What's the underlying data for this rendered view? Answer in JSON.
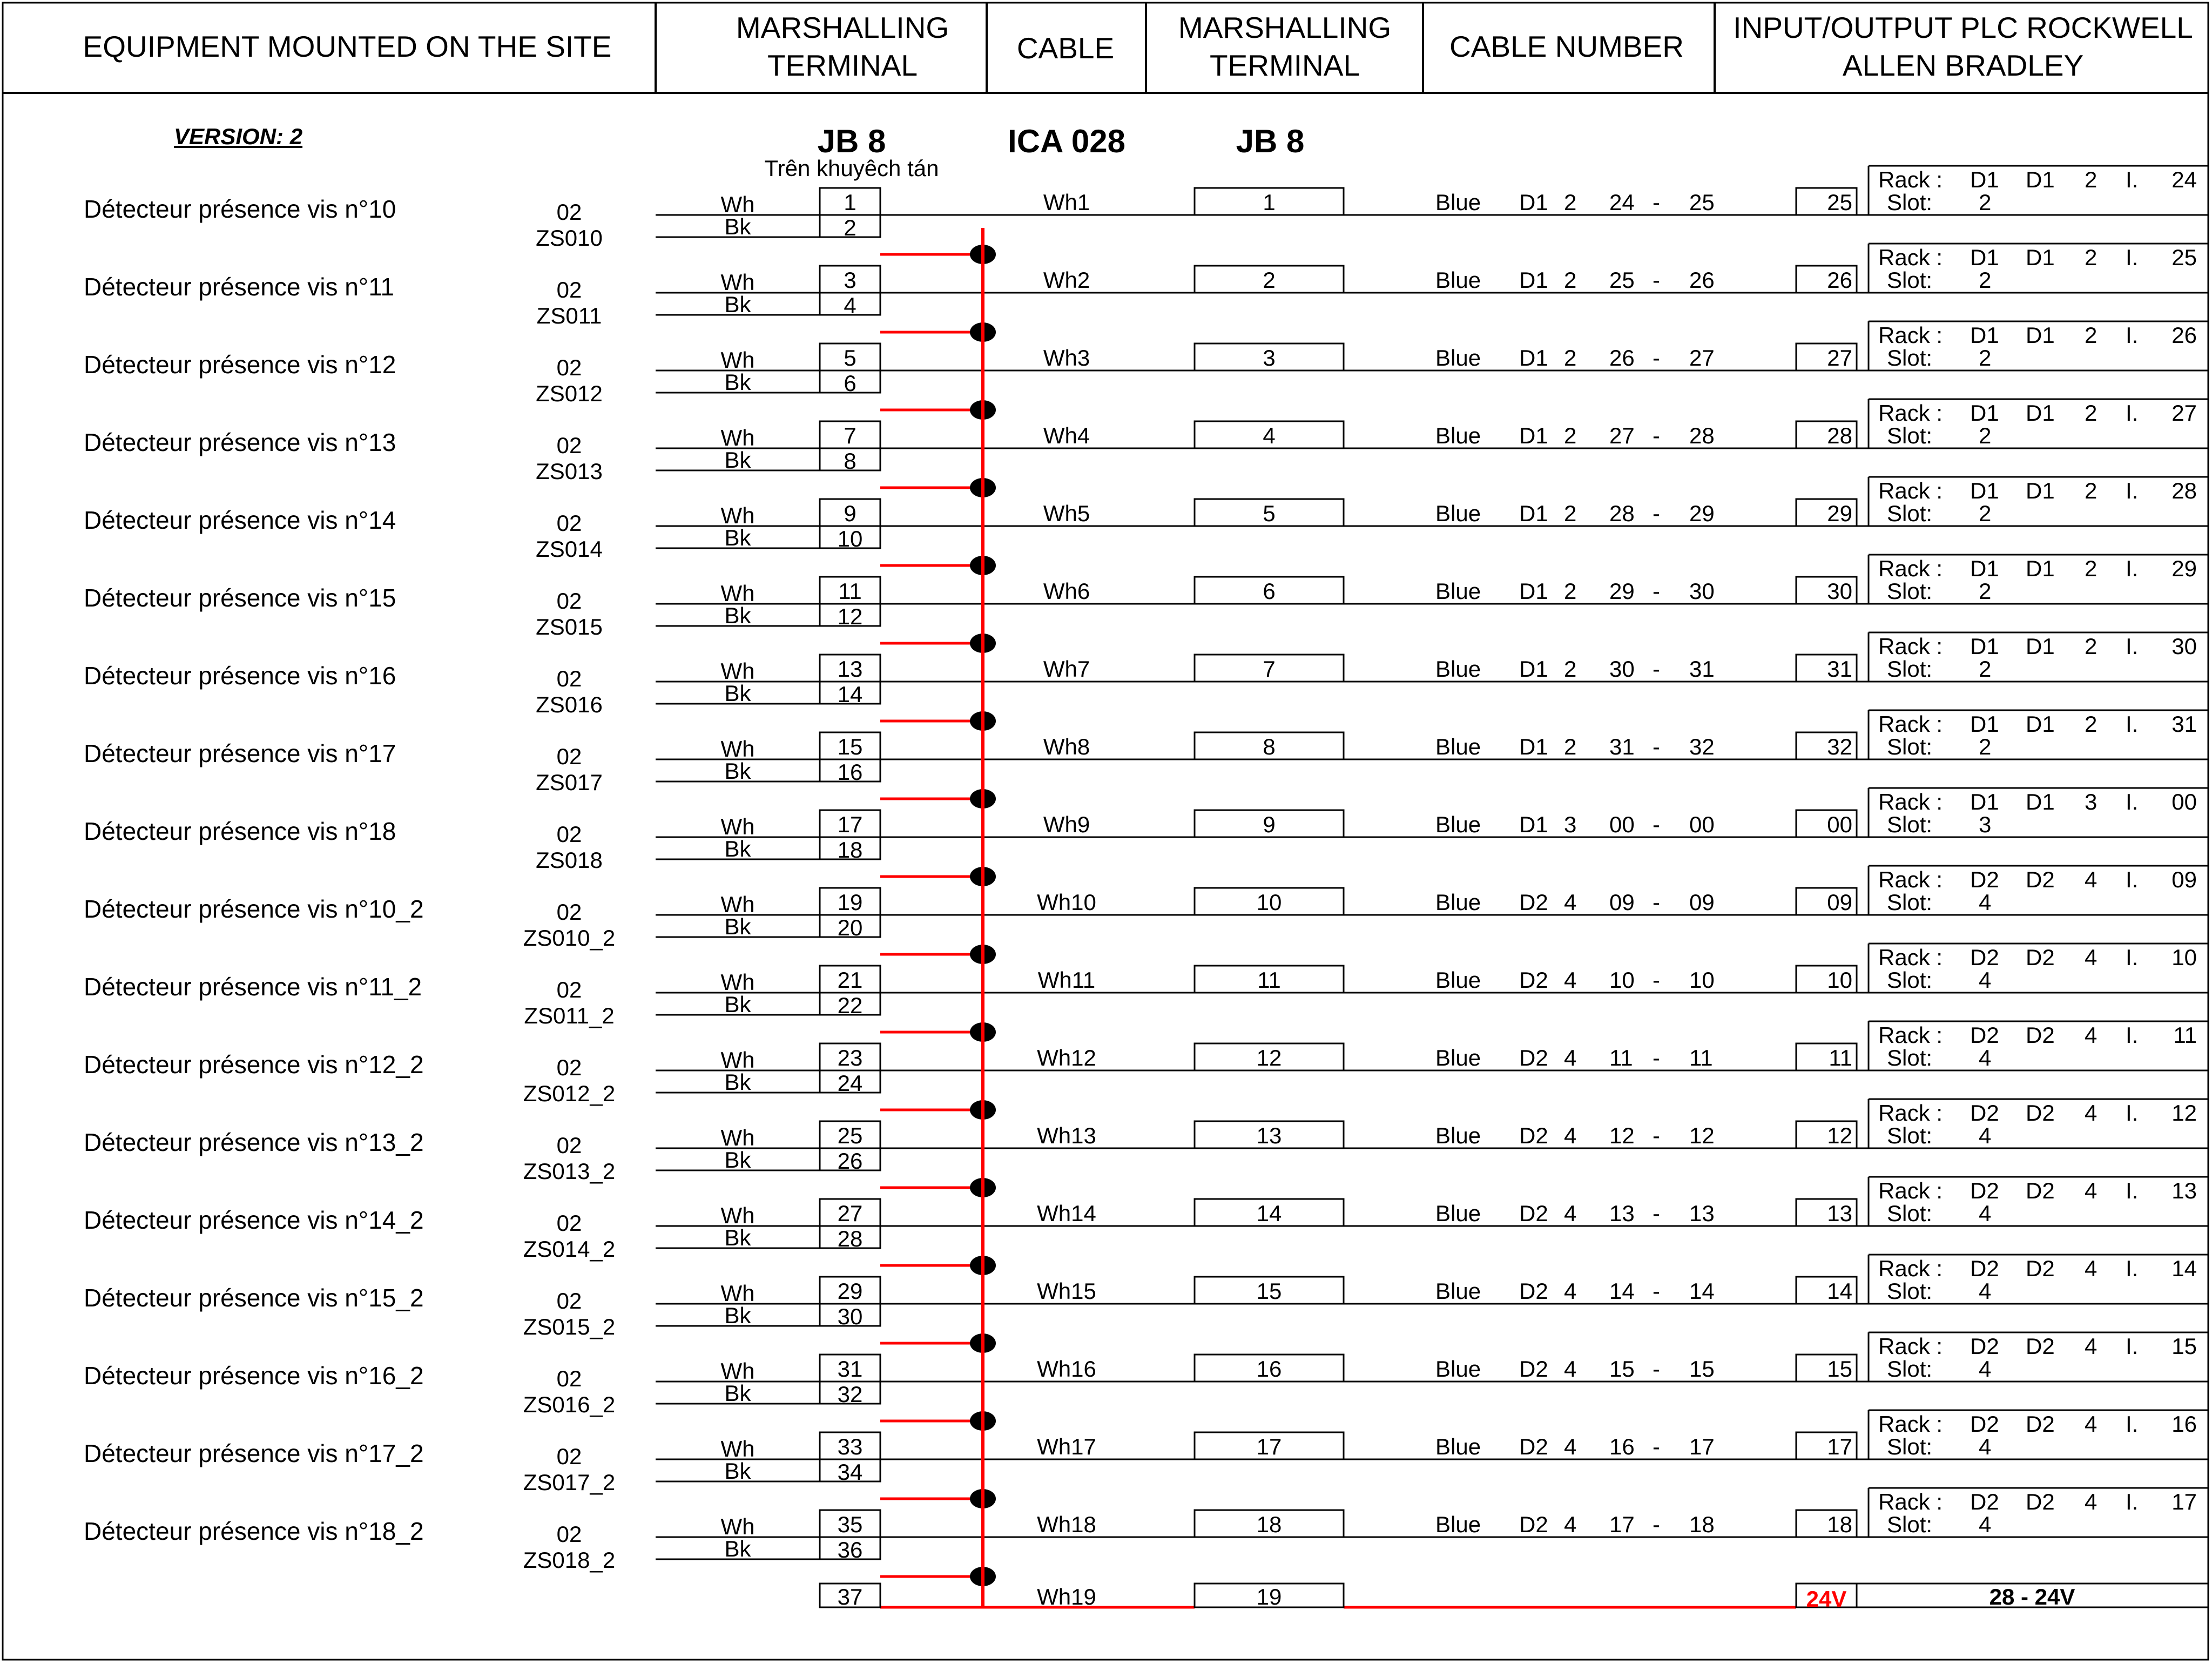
{
  "header": {
    "equipment": "EQUIPMENT MOUNTED ON THE SITE",
    "marshalling_1": [
      "MARSHALLING",
      "TERMINAL"
    ],
    "cable": "CABLE",
    "marshalling_2": [
      "MARSHALLING",
      "TERMINAL"
    ],
    "cable_number": "CABLE NUMBER",
    "plc": [
      "INPUT/OUTPUT PLC ROCKWELL",
      "ALLEN BRADLEY"
    ]
  },
  "version": "VERSION: 2",
  "junction_box_1": "JB 8",
  "junction_box_1_note": "Trên khuyêch tán",
  "cable_id": "ICA 028",
  "junction_box_2": "JB 8",
  "rows": [
    {
      "desc": "Détecteur présence vis n°10",
      "tag_top": "02",
      "tag": "ZS010",
      "term_a": "1",
      "term_b": "2",
      "wire": "Wh1",
      "jb_term": "1",
      "cable": [
        "Blue",
        "D1",
        "2",
        "24",
        "-",
        "25"
      ],
      "io": "25",
      "rack": [
        "Rack :",
        "D1",
        "D1",
        "2",
        "I.",
        "24"
      ],
      "slot": [
        "Slot:",
        "2"
      ]
    },
    {
      "desc": "Détecteur présence vis n°11",
      "tag_top": "02",
      "tag": "ZS011",
      "term_a": "3",
      "term_b": "4",
      "wire": "Wh2",
      "jb_term": "2",
      "cable": [
        "Blue",
        "D1",
        "2",
        "25",
        "-",
        "26"
      ],
      "io": "26",
      "rack": [
        "Rack :",
        "D1",
        "D1",
        "2",
        "I.",
        "25"
      ],
      "slot": [
        "Slot:",
        "2"
      ]
    },
    {
      "desc": "Détecteur présence vis n°12",
      "tag_top": "02",
      "tag": "ZS012",
      "term_a": "5",
      "term_b": "6",
      "wire": "Wh3",
      "jb_term": "3",
      "cable": [
        "Blue",
        "D1",
        "2",
        "26",
        "-",
        "27"
      ],
      "io": "27",
      "rack": [
        "Rack :",
        "D1",
        "D1",
        "2",
        "I.",
        "26"
      ],
      "slot": [
        "Slot:",
        "2"
      ]
    },
    {
      "desc": "Détecteur présence vis n°13",
      "tag_top": "02",
      "tag": "ZS013",
      "term_a": "7",
      "term_b": "8",
      "wire": "Wh4",
      "jb_term": "4",
      "cable": [
        "Blue",
        "D1",
        "2",
        "27",
        "-",
        "28"
      ],
      "io": "28",
      "rack": [
        "Rack :",
        "D1",
        "D1",
        "2",
        "I.",
        "27"
      ],
      "slot": [
        "Slot:",
        "2"
      ]
    },
    {
      "desc": "Détecteur présence vis n°14",
      "tag_top": "02",
      "tag": "ZS014",
      "term_a": "9",
      "term_b": "10",
      "wire": "Wh5",
      "jb_term": "5",
      "cable": [
        "Blue",
        "D1",
        "2",
        "28",
        "-",
        "29"
      ],
      "io": "29",
      "rack": [
        "Rack :",
        "D1",
        "D1",
        "2",
        "I.",
        "28"
      ],
      "slot": [
        "Slot:",
        "2"
      ]
    },
    {
      "desc": "Détecteur présence vis n°15",
      "tag_top": "02",
      "tag": "ZS015",
      "term_a": "11",
      "term_b": "12",
      "wire": "Wh6",
      "jb_term": "6",
      "cable": [
        "Blue",
        "D1",
        "2",
        "29",
        "-",
        "30"
      ],
      "io": "30",
      "rack": [
        "Rack :",
        "D1",
        "D1",
        "2",
        "I.",
        "29"
      ],
      "slot": [
        "Slot:",
        "2"
      ]
    },
    {
      "desc": "Détecteur présence vis n°16",
      "tag_top": "02",
      "tag": "ZS016",
      "term_a": "13",
      "term_b": "14",
      "wire": "Wh7",
      "jb_term": "7",
      "cable": [
        "Blue",
        "D1",
        "2",
        "30",
        "-",
        "31"
      ],
      "io": "31",
      "rack": [
        "Rack :",
        "D1",
        "D1",
        "2",
        "I.",
        "30"
      ],
      "slot": [
        "Slot:",
        "2"
      ]
    },
    {
      "desc": "Détecteur présence vis n°17",
      "tag_top": "02",
      "tag": "ZS017",
      "term_a": "15",
      "term_b": "16",
      "wire": "Wh8",
      "jb_term": "8",
      "cable": [
        "Blue",
        "D1",
        "2",
        "31",
        "-",
        "32"
      ],
      "io": "32",
      "rack": [
        "Rack :",
        "D1",
        "D1",
        "2",
        "I.",
        "31"
      ],
      "slot": [
        "Slot:",
        "2"
      ]
    },
    {
      "desc": "Détecteur présence vis n°18",
      "tag_top": "02",
      "tag": "ZS018",
      "term_a": "17",
      "term_b": "18",
      "wire": "Wh9",
      "jb_term": "9",
      "cable": [
        "Blue",
        "D1",
        "3",
        "00",
        "-",
        "00"
      ],
      "io": "00",
      "rack": [
        "Rack :",
        "D1",
        "D1",
        "3",
        "I.",
        "00"
      ],
      "slot": [
        "Slot:",
        "3"
      ]
    },
    {
      "desc": "Détecteur présence vis n°10_2",
      "tag_top": "02",
      "tag": "ZS010_2",
      "term_a": "19",
      "term_b": "20",
      "wire": "Wh10",
      "jb_term": "10",
      "cable": [
        "Blue",
        "D2",
        "4",
        "09",
        "-",
        "09"
      ],
      "io": "09",
      "rack": [
        "Rack :",
        "D2",
        "D2",
        "4",
        "I.",
        "09"
      ],
      "slot": [
        "Slot:",
        "4"
      ]
    },
    {
      "desc": "Détecteur présence vis n°11_2",
      "tag_top": "02",
      "tag": "ZS011_2",
      "term_a": "21",
      "term_b": "22",
      "wire": "Wh11",
      "jb_term": "11",
      "cable": [
        "Blue",
        "D2",
        "4",
        "10",
        "-",
        "10"
      ],
      "io": "10",
      "rack": [
        "Rack :",
        "D2",
        "D2",
        "4",
        "I.",
        "10"
      ],
      "slot": [
        "Slot:",
        "4"
      ]
    },
    {
      "desc": "Détecteur présence vis n°12_2",
      "tag_top": "02",
      "tag": "ZS012_2",
      "term_a": "23",
      "term_b": "24",
      "wire": "Wh12",
      "jb_term": "12",
      "cable": [
        "Blue",
        "D2",
        "4",
        "11",
        "-",
        "11"
      ],
      "io": "11",
      "rack": [
        "Rack :",
        "D2",
        "D2",
        "4",
        "I.",
        "11"
      ],
      "slot": [
        "Slot:",
        "4"
      ]
    },
    {
      "desc": "Détecteur présence vis n°13_2",
      "tag_top": "02",
      "tag": "ZS013_2",
      "term_a": "25",
      "term_b": "26",
      "wire": "Wh13",
      "jb_term": "13",
      "cable": [
        "Blue",
        "D2",
        "4",
        "12",
        "-",
        "12"
      ],
      "io": "12",
      "rack": [
        "Rack :",
        "D2",
        "D2",
        "4",
        "I.",
        "12"
      ],
      "slot": [
        "Slot:",
        "4"
      ]
    },
    {
      "desc": "Détecteur présence vis n°14_2",
      "tag_top": "02",
      "tag": "ZS014_2",
      "term_a": "27",
      "term_b": "28",
      "wire": "Wh14",
      "jb_term": "14",
      "cable": [
        "Blue",
        "D2",
        "4",
        "13",
        "-",
        "13"
      ],
      "io": "13",
      "rack": [
        "Rack :",
        "D2",
        "D2",
        "4",
        "I.",
        "13"
      ],
      "slot": [
        "Slot:",
        "4"
      ]
    },
    {
      "desc": "Détecteur présence vis n°15_2",
      "tag_top": "02",
      "tag": "ZS015_2",
      "term_a": "29",
      "term_b": "30",
      "wire": "Wh15",
      "jb_term": "15",
      "cable": [
        "Blue",
        "D2",
        "4",
        "14",
        "-",
        "14"
      ],
      "io": "14",
      "rack": [
        "Rack :",
        "D2",
        "D2",
        "4",
        "I.",
        "14"
      ],
      "slot": [
        "Slot:",
        "4"
      ]
    },
    {
      "desc": "Détecteur présence vis n°16_2",
      "tag_top": "02",
      "tag": "ZS016_2",
      "term_a": "31",
      "term_b": "32",
      "wire": "Wh16",
      "jb_term": "16",
      "cable": [
        "Blue",
        "D2",
        "4",
        "15",
        "-",
        "15"
      ],
      "io": "15",
      "rack": [
        "Rack :",
        "D2",
        "D2",
        "4",
        "I.",
        "15"
      ],
      "slot": [
        "Slot:",
        "4"
      ]
    },
    {
      "desc": "Détecteur présence vis n°17_2",
      "tag_top": "02",
      "tag": "ZS017_2",
      "term_a": "33",
      "term_b": "34",
      "wire": "Wh17",
      "jb_term": "17",
      "cable": [
        "Blue",
        "D2",
        "4",
        "16",
        "-",
        "17"
      ],
      "io": "17",
      "rack": [
        "Rack :",
        "D2",
        "D2",
        "4",
        "I.",
        "16"
      ],
      "slot": [
        "Slot:",
        "4"
      ]
    },
    {
      "desc": "Détecteur présence vis n°18_2",
      "tag_top": "02",
      "tag": "ZS018_2",
      "term_a": "35",
      "term_b": "36",
      "wire": "Wh18",
      "jb_term": "18",
      "cable": [
        "Blue",
        "D2",
        "4",
        "17",
        "-",
        "18"
      ],
      "io": "18",
      "rack": [
        "Rack :",
        "D2",
        "D2",
        "4",
        "I.",
        "17"
      ],
      "slot": [
        "Slot:",
        "4"
      ]
    }
  ],
  "wire_labels": {
    "white": "Wh",
    "black": "Bk"
  },
  "supply_row": {
    "term_a": "37",
    "wire": "Wh19",
    "jb_term": "19",
    "io": "24V",
    "label": "28 - 24V"
  },
  "colors": {
    "line": "#000000",
    "common_wire": "#ff0000",
    "supply_text": "#ff0000"
  }
}
